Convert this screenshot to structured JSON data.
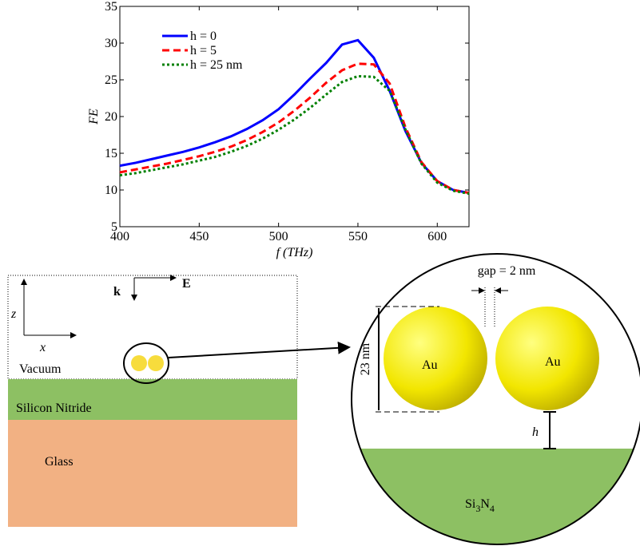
{
  "chart_data": {
    "type": "line",
    "x_label": "f (THz)",
    "y_label": "FE",
    "x": [
      400,
      410,
      420,
      430,
      440,
      450,
      460,
      470,
      480,
      490,
      500,
      510,
      520,
      530,
      540,
      550,
      560,
      570,
      580,
      590,
      600,
      610,
      620
    ],
    "series": [
      {
        "name": "h = 0",
        "color": "#0000ff",
        "dash": "solid",
        "values": [
          13.3,
          13.7,
          14.2,
          14.7,
          15.2,
          15.8,
          16.5,
          17.3,
          18.3,
          19.5,
          21,
          23,
          25.2,
          27.3,
          29.8,
          30.4,
          28,
          23.5,
          18,
          13.7,
          11.2,
          10,
          9.6
        ]
      },
      {
        "name": "h = 5",
        "color": "#ff0000",
        "dash": "dashed",
        "values": [
          12.4,
          12.8,
          13.2,
          13.6,
          14.1,
          14.6,
          15.2,
          15.9,
          16.8,
          17.9,
          19.2,
          20.8,
          22.6,
          24.6,
          26.3,
          27.2,
          27.1,
          24.5,
          18.5,
          13.8,
          11.2,
          10,
          9.6
        ]
      },
      {
        "name": "h = 25 nm",
        "color": "#008000",
        "dash": "dotted",
        "values": [
          12,
          12.3,
          12.7,
          13.1,
          13.5,
          14,
          14.5,
          15.2,
          16,
          17,
          18.2,
          19.6,
          21.2,
          23,
          24.7,
          25.5,
          25.4,
          23.5,
          18.2,
          13.6,
          11,
          9.9,
          9.5
        ]
      }
    ],
    "xlim": [
      400,
      620
    ],
    "xticks": [
      400,
      450,
      500,
      550,
      600
    ],
    "ylim": [
      5,
      35
    ],
    "yticks": [
      5,
      10,
      15,
      20,
      25,
      30,
      35
    ],
    "legend": "upper-left",
    "grid": false
  },
  "diagram": {
    "k": "k",
    "E": "E",
    "z": "z",
    "x": "x",
    "vacuum": "Vacuum",
    "nitride": "Silicon Nitride",
    "glass": "Glass",
    "gap": "gap = 2 nm",
    "diameter": "23 nm",
    "left_particle": "Au",
    "right_particle": "Au",
    "height": "h",
    "substrate": [
      "Si",
      "3",
      "N",
      "4"
    ]
  }
}
